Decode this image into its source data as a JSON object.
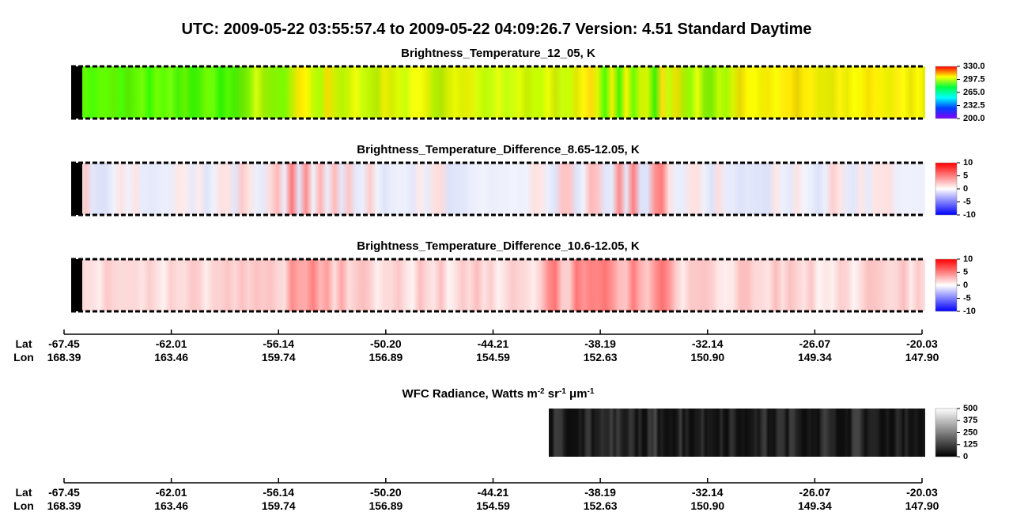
{
  "title": "UTC:  2009-05-22   03:55:57.4  to  2009-05-22   04:09:26.7    Version: 4.51  Standard Daytime",
  "chart_data": [
    {
      "type": "heatmap",
      "title": "Brightness_Temperature_12_05, K",
      "colorbar": {
        "lim": [
          200,
          330
        ],
        "colors": [
          "#8000ff",
          "#0040ff",
          "#00ffff",
          "#00ff40",
          "#ffff00",
          "#ff0000"
        ],
        "ticks": [
          {
            "value": 330,
            "label": "330.0"
          },
          {
            "value": 297.5,
            "label": "297.5"
          },
          {
            "value": 265,
            "label": "265.0"
          },
          {
            "value": 232.5,
            "label": "232.5"
          },
          {
            "value": 200,
            "label": "200.0"
          }
        ]
      }
    },
    {
      "type": "heatmap",
      "title": "Brightness_Temperature_Difference_8.65-12.05, K",
      "colorbar": {
        "lim": [
          -10,
          10
        ],
        "colors": [
          "#0000ff",
          "#ffffff",
          "#ff0000"
        ],
        "ticks": [
          10,
          5,
          0,
          -5,
          -10
        ]
      }
    },
    {
      "type": "heatmap",
      "title": "Brightness_Temperature_Difference_10.6-12.05, K",
      "colorbar": {
        "lim": [
          -10,
          10
        ],
        "colors": [
          "#0000ff",
          "#ffffff",
          "#ff0000"
        ],
        "ticks": [
          10,
          5,
          0,
          -5,
          -10
        ]
      }
    },
    {
      "type": "heatmap",
      "title_parts": [
        "WFC Radiance, Watts m",
        "-2",
        " sr",
        "-1",
        " μm",
        "-1"
      ],
      "colorbar": {
        "lim": [
          0,
          500
        ],
        "colors": [
          "#000000",
          "#ffffff"
        ],
        "ticks": [
          500,
          375,
          250,
          125,
          0
        ]
      }
    }
  ],
  "track_axis": {
    "row_labels": [
      "Lat",
      "Lon"
    ],
    "lat": [
      "-67.45",
      "-62.01",
      "-56.14",
      "-50.20",
      "-44.21",
      "-38.19",
      "-32.14",
      "-26.07",
      "-20.03"
    ],
    "lon": [
      "168.39",
      "163.46",
      "159.74",
      "156.89",
      "154.59",
      "152.63",
      "150.90",
      "149.34",
      "147.90"
    ]
  }
}
